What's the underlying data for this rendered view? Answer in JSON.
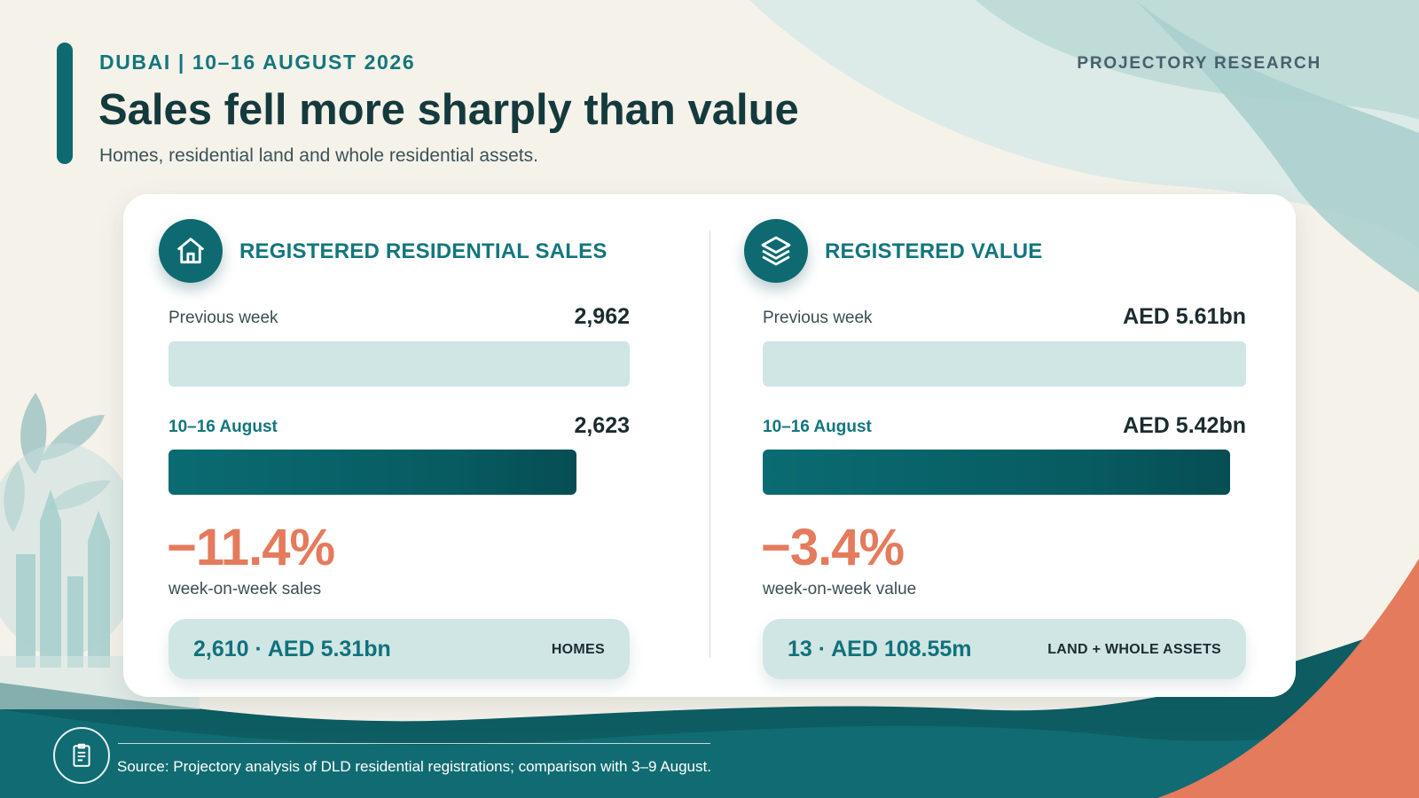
{
  "header": {
    "kicker": "DUBAI | 10–16 AUGUST 2026",
    "title": "Sales fell more sharply than value",
    "subtitle": "Homes, residential land and whole residential assets.",
    "brand": "PROJECTORY RESEARCH"
  },
  "colors": {
    "teal_dark": "#0e6a70",
    "teal_light": "#cfe6e5",
    "coral": "#e47b5c",
    "background": "#f5f2ea"
  },
  "chart_data": [
    {
      "type": "bar",
      "title": "REGISTERED RESIDENTIAL SALES",
      "icon": "house-icon",
      "orientation": "horizontal",
      "categories": [
        "Previous week",
        "10–16 August"
      ],
      "values": [
        2962,
        2623
      ],
      "value_labels": [
        "2,962",
        "2,623"
      ],
      "change_label": "−11.4%",
      "change_caption": "week-on-week sales",
      "breakdown": {
        "value": "2,610 · AED 5.31bn",
        "tag": "HOMES"
      }
    },
    {
      "type": "bar",
      "title": "REGISTERED VALUE",
      "icon": "layers-icon",
      "orientation": "horizontal",
      "unit": "AED bn",
      "categories": [
        "Previous week",
        "10–16 August"
      ],
      "values": [
        5.61,
        5.42
      ],
      "value_labels": [
        "AED 5.61bn",
        "AED 5.42bn"
      ],
      "change_label": "−3.4%",
      "change_caption": "week-on-week value",
      "breakdown": {
        "value": "13 · AED 108.55m",
        "tag": "LAND + WHOLE ASSETS"
      }
    }
  ],
  "footer": {
    "icon": "document-icon",
    "source": "Source: Projectory analysis of DLD residential registrations; comparison with 3–9 August."
  }
}
